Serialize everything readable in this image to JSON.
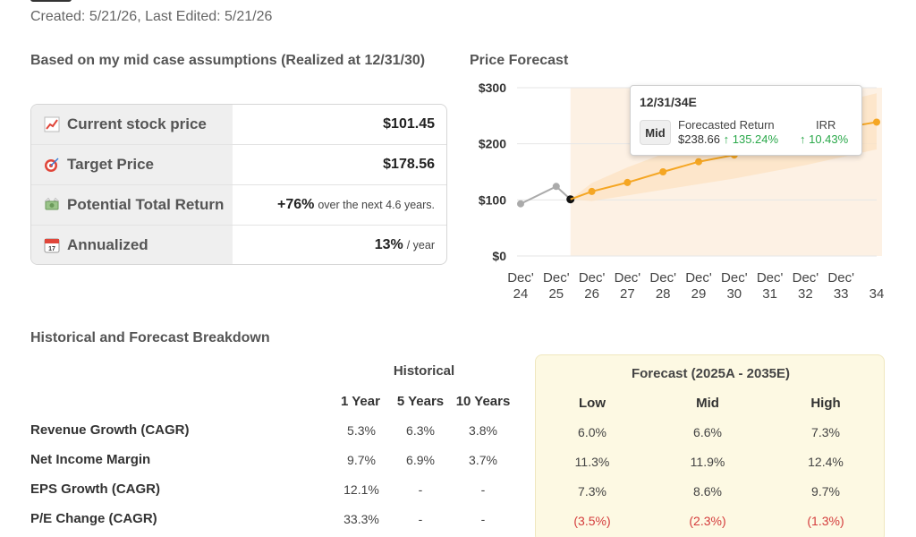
{
  "header": {
    "created_text": "Created: 5/21/26, Last Edited: 5/21/26"
  },
  "assumptions": {
    "heading": "Based on my mid case assumptions (Realized at 12/31/30)",
    "rows": [
      {
        "icon": "chart-increasing-icon",
        "label": "Current stock price",
        "value": "$101.45",
        "suffix": ""
      },
      {
        "icon": "target-icon",
        "label": "Target Price",
        "value": "$178.56",
        "suffix": ""
      },
      {
        "icon": "money-wings-icon",
        "label": "Potential Total Return",
        "value": "+76%",
        "suffix": "over the next 4.6 years."
      },
      {
        "icon": "calendar-icon",
        "label": "Annualized",
        "value": "13%",
        "suffix": "/ year"
      }
    ]
  },
  "price_forecast": {
    "heading": "Price Forecast",
    "tooltip": {
      "date": "12/31/34E",
      "case": "Mid",
      "return_label": "Forecasted Return",
      "return_price": "$238.66",
      "return_pct": "↑ 135.24%",
      "irr_label": "IRR",
      "irr_value": "↑ 10.43%"
    },
    "colors": {
      "historical": "#aaaaaa",
      "forecast": "#f5a623",
      "band": "#fde3c4",
      "shade": "#fdf1e4"
    }
  },
  "chart_data": {
    "type": "line",
    "title": "Price Forecast",
    "x_labels": [
      [
        "Dec'",
        "24"
      ],
      [
        "Dec'",
        "25"
      ],
      [
        "Dec'",
        "26"
      ],
      [
        "Dec'",
        "27"
      ],
      [
        "Dec'",
        "28"
      ],
      [
        "Dec'",
        "29"
      ],
      [
        "Dec'",
        "30"
      ],
      [
        "Dec'",
        "31"
      ],
      [
        "Dec'",
        "32"
      ],
      [
        "Dec'",
        "33"
      ],
      [
        "",
        "34"
      ]
    ],
    "y_ticks": [
      "$0",
      "$100",
      "$200",
      "$300"
    ],
    "ylim": [
      0,
      300
    ],
    "series": [
      {
        "values": [
          93,
          124,
          101
        ],
        "x_start": 0,
        "points_x": [
          0,
          1,
          1.4
        ]
      },
      {
        "values": [
          101,
          115,
          131,
          150,
          168,
          180,
          195,
          212,
          228,
          238.66
        ],
        "points_x": [
          1.4,
          2,
          3,
          4,
          5,
          6,
          7,
          8,
          9,
          10
        ]
      }
    ],
    "band": {
      "low": [
        101,
        98,
        108,
        118,
        128,
        138,
        150,
        162,
        176,
        190
      ],
      "high": [
        101,
        130,
        158,
        182,
        205,
        228,
        248,
        262,
        275,
        290
      ]
    },
    "legend": "none"
  },
  "breakdown": {
    "heading": "Historical and Forecast Breakdown",
    "historical_label": "Historical",
    "historical_cols": [
      "1 Year",
      "5 Years",
      "10 Years"
    ],
    "forecast_label": "Forecast (2025A - 2035E)",
    "forecast_cols": [
      "Low",
      "Mid",
      "High"
    ],
    "rows": [
      {
        "label": "Revenue Growth (CAGR)",
        "hist": [
          "5.3%",
          "6.3%",
          "3.8%"
        ],
        "fc": [
          "6.0%",
          "6.6%",
          "7.3%"
        ],
        "neg": false
      },
      {
        "label": "Net Income Margin",
        "hist": [
          "9.7%",
          "6.9%",
          "3.7%"
        ],
        "fc": [
          "11.3%",
          "11.9%",
          "12.4%"
        ],
        "neg": false
      },
      {
        "label": "EPS Growth (CAGR)",
        "hist": [
          "12.1%",
          "-",
          "-"
        ],
        "fc": [
          "7.3%",
          "8.6%",
          "9.7%"
        ],
        "neg": false
      },
      {
        "label": "P/E Change (CAGR)",
        "hist": [
          "33.3%",
          "-",
          "-"
        ],
        "fc": [
          "(3.5%)",
          "(2.3%)",
          "(1.3%)"
        ],
        "neg": true
      }
    ]
  }
}
